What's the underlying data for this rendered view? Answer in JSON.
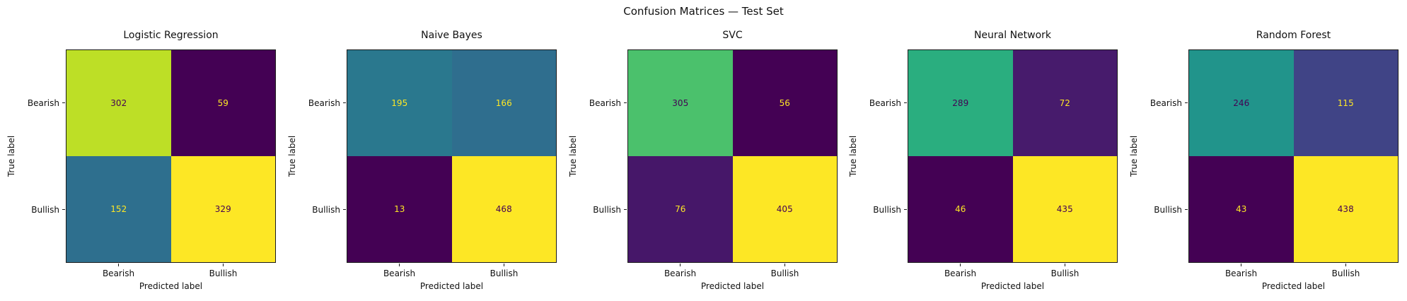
{
  "figure": {
    "title": "Confusion Matrices — Test Set",
    "background": "#ffffff",
    "text_color": "#111111",
    "axes_edge_color": "#1a1a1a"
  },
  "chart_data": [
    {
      "type": "heatmap",
      "title": "Logistic Regression",
      "xlabel": "Predicted label",
      "ylabel": "True label",
      "x_categories": [
        "Bearish",
        "Bullish"
      ],
      "y_categories": [
        "Bearish",
        "Bullish"
      ],
      "values": [
        [
          302,
          59
        ],
        [
          152,
          329
        ]
      ],
      "colormap": "viridis",
      "cell_colors": [
        [
          "#bddf26",
          "#440154"
        ],
        [
          "#2e6f8e",
          "#fde725"
        ]
      ],
      "text_colors": [
        [
          "#440154",
          "#fde725"
        ],
        [
          "#fde725",
          "#440154"
        ]
      ],
      "grid": false,
      "legend": false
    },
    {
      "type": "heatmap",
      "title": "Naive Bayes",
      "xlabel": "Predicted label",
      "ylabel": "True label",
      "x_categories": [
        "Bearish",
        "Bullish"
      ],
      "y_categories": [
        "Bearish",
        "Bullish"
      ],
      "values": [
        [
          195,
          166
        ],
        [
          13,
          468
        ]
      ],
      "colormap": "viridis",
      "cell_colors": [
        [
          "#2a788e",
          "#2f6e8e"
        ],
        [
          "#440154",
          "#fde725"
        ]
      ],
      "text_colors": [
        [
          "#fde725",
          "#fde725"
        ],
        [
          "#fde725",
          "#440154"
        ]
      ],
      "grid": false,
      "legend": false
    },
    {
      "type": "heatmap",
      "title": "SVC",
      "xlabel": "Predicted label",
      "ylabel": "True label",
      "x_categories": [
        "Bearish",
        "Bullish"
      ],
      "y_categories": [
        "Bearish",
        "Bullish"
      ],
      "values": [
        [
          305,
          56
        ],
        [
          76,
          405
        ]
      ],
      "colormap": "viridis",
      "cell_colors": [
        [
          "#4bc16c",
          "#440154"
        ],
        [
          "#461769",
          "#fde725"
        ]
      ],
      "text_colors": [
        [
          "#440154",
          "#fde725"
        ],
        [
          "#fde725",
          "#440154"
        ]
      ],
      "grid": false,
      "legend": false
    },
    {
      "type": "heatmap",
      "title": "Neural Network",
      "xlabel": "Predicted label",
      "ylabel": "True label",
      "x_categories": [
        "Bearish",
        "Bullish"
      ],
      "y_categories": [
        "Bearish",
        "Bullish"
      ],
      "values": [
        [
          289,
          72
        ],
        [
          46,
          435
        ]
      ],
      "colormap": "viridis",
      "cell_colors": [
        [
          "#2aae7f",
          "#471b6c"
        ],
        [
          "#440154",
          "#fde725"
        ]
      ],
      "text_colors": [
        [
          "#440154",
          "#fde725"
        ],
        [
          "#fde725",
          "#440154"
        ]
      ],
      "grid": false,
      "legend": false
    },
    {
      "type": "heatmap",
      "title": "Random Forest",
      "xlabel": "Predicted label",
      "ylabel": "True label",
      "x_categories": [
        "Bearish",
        "Bullish"
      ],
      "y_categories": [
        "Bearish",
        "Bullish"
      ],
      "values": [
        [
          246,
          115
        ],
        [
          43,
          438
        ]
      ],
      "colormap": "viridis",
      "cell_colors": [
        [
          "#21948b",
          "#404486"
        ],
        [
          "#440154",
          "#fde725"
        ]
      ],
      "text_colors": [
        [
          "#440154",
          "#fde725"
        ],
        [
          "#fde725",
          "#440154"
        ]
      ],
      "grid": false,
      "legend": false
    }
  ]
}
